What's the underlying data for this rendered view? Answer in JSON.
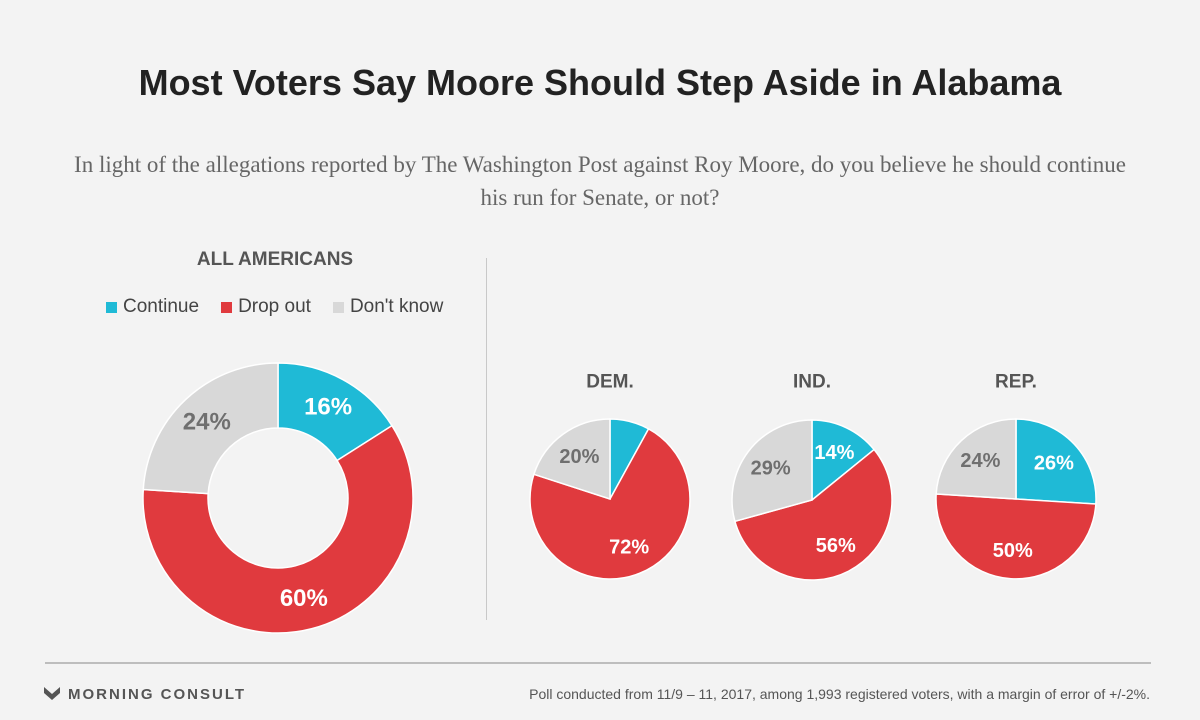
{
  "title": "Most Voters Say Moore Should Step Aside in Alabama",
  "subtitle": "In light of the allegations reported by The Washington Post against Roy Moore, do you believe he should continue his run for Senate, or not?",
  "section_label": "ALL AMERICANS",
  "legend": [
    {
      "label": "Continue",
      "color": "#1fbad6"
    },
    {
      "label": "Drop out",
      "color": "#e03a3e"
    },
    {
      "label": "Don't know",
      "color": "#d8d8d8"
    }
  ],
  "chart_data": [
    {
      "type": "pie",
      "variant": "donut",
      "group": "ALL AMERICANS",
      "categories": [
        "Continue",
        "Drop out",
        "Don't know"
      ],
      "values": [
        16,
        60,
        24
      ],
      "labels": [
        "16%",
        "60%",
        "24%"
      ]
    },
    {
      "type": "pie",
      "group": "DEM.",
      "categories": [
        "Continue",
        "Drop out",
        "Don't know"
      ],
      "values": [
        8,
        72,
        20
      ],
      "labels": [
        "",
        "72%",
        "20%"
      ]
    },
    {
      "type": "pie",
      "group": "IND.",
      "categories": [
        "Continue",
        "Drop out",
        "Don't know"
      ],
      "values": [
        14,
        56,
        29
      ],
      "labels": [
        "14%",
        "56%",
        "29%"
      ]
    },
    {
      "type": "pie",
      "group": "REP.",
      "categories": [
        "Continue",
        "Drop out",
        "Don't know"
      ],
      "values": [
        26,
        50,
        24
      ],
      "labels": [
        "26%",
        "50%",
        "24%"
      ]
    }
  ],
  "brand": "MORNING CONSULT",
  "footnote": "Poll conducted from 11/9 – 11, 2017, among 1,993 registered voters, with a margin of error of +/-2%."
}
